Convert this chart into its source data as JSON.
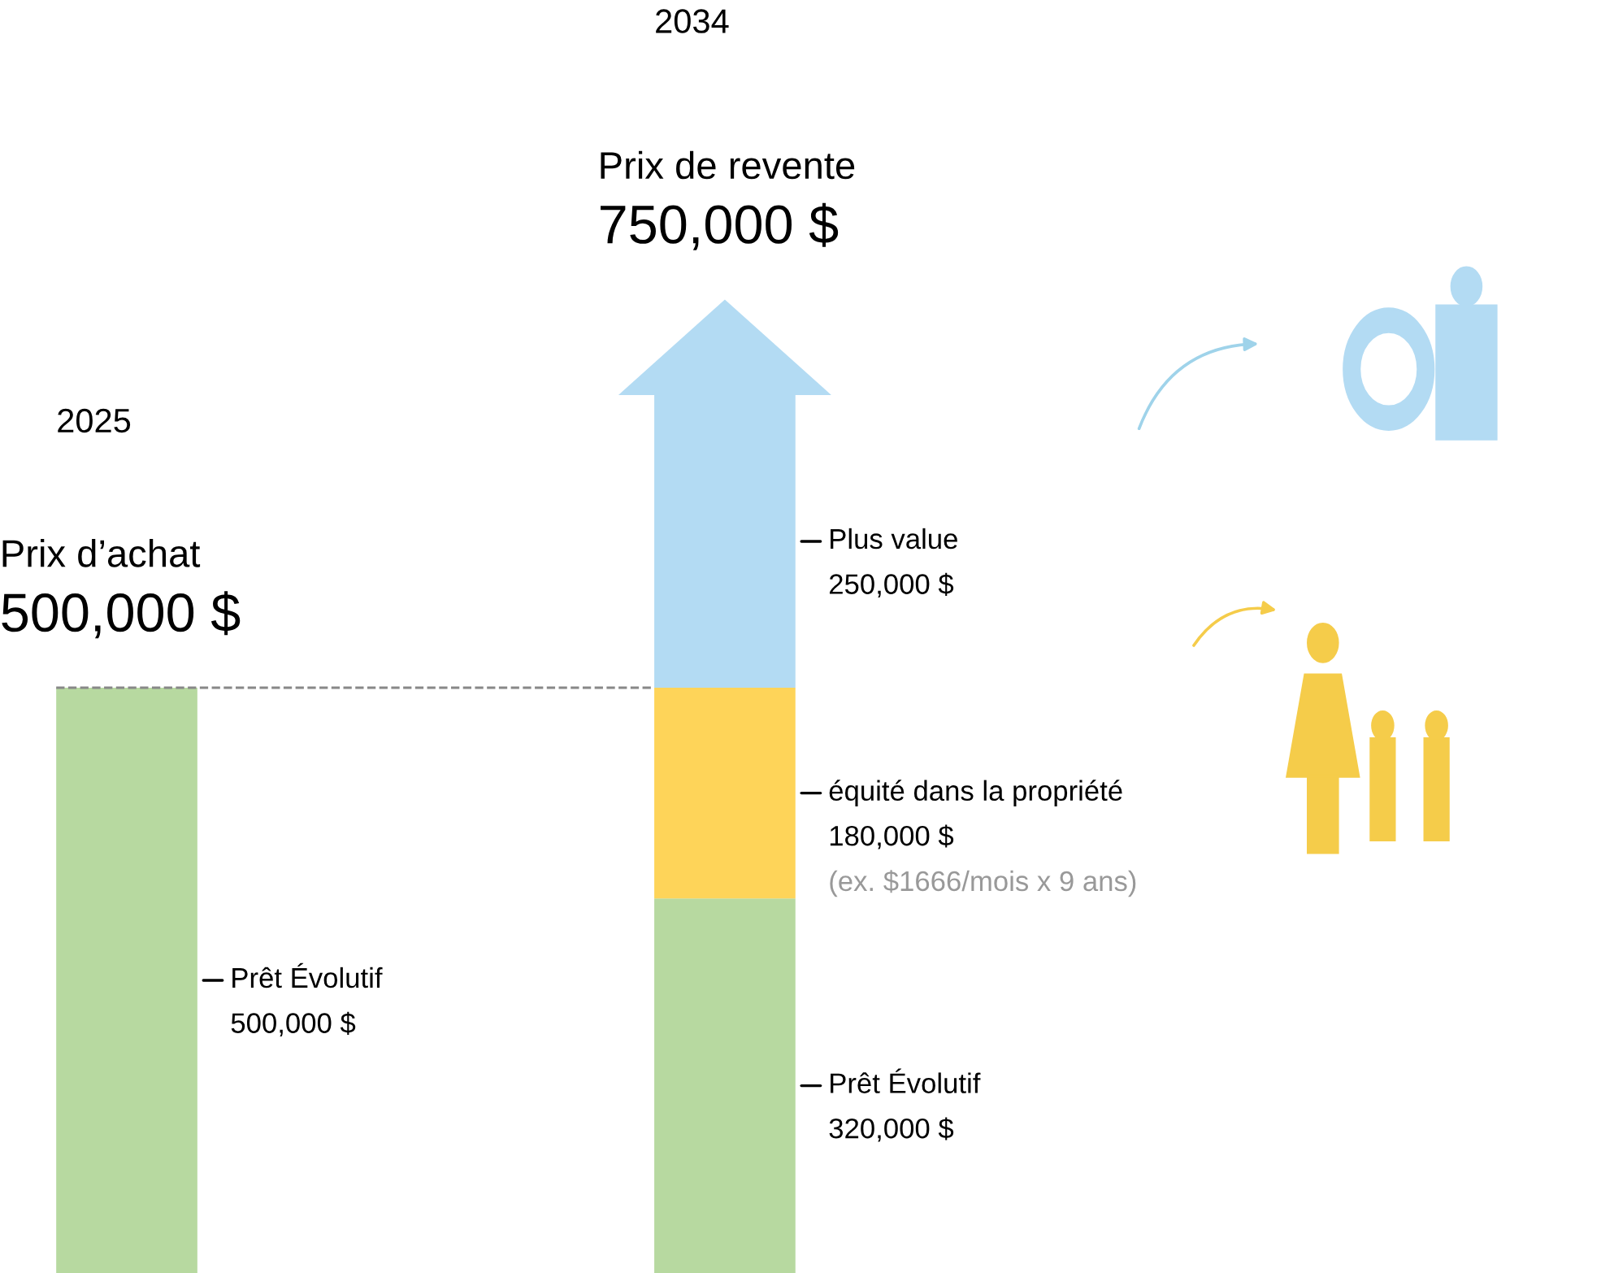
{
  "chart_data": {
    "type": "bar",
    "stacked": true,
    "categories": [
      null,
      null
    ],
    "series": [
      {
        "name": "Prêt Évolutif",
        "color": "#b7d9a0",
        "values": [
          500000,
          320000
        ],
        "value_labels": [
          "500,000 $",
          "320,000 $"
        ]
      },
      {
        "name": "équité dans la propriété",
        "color": "#fed459",
        "values": [
          null,
          180000
        ],
        "value_labels": [
          null,
          "180,000 $"
        ]
      },
      {
        "name": "Plus value",
        "color": "#b3dbf3",
        "values": [
          null,
          250000
        ],
        "value_labels": [
          null,
          "250,000 $"
        ]
      }
    ],
    "annotations": [
      "2025",
      "Prix d’achat",
      "500,000 $",
      "2034",
      "Prix de revente",
      "750,000 $",
      "(ex. $1666/mois x 9 ans)"
    ],
    "ref_lines": [
      {
        "axis": "y",
        "value": 500000,
        "label": null,
        "color": "#888888",
        "line_style": "dashed"
      }
    ],
    "legend": false,
    "grid": false
  }
}
